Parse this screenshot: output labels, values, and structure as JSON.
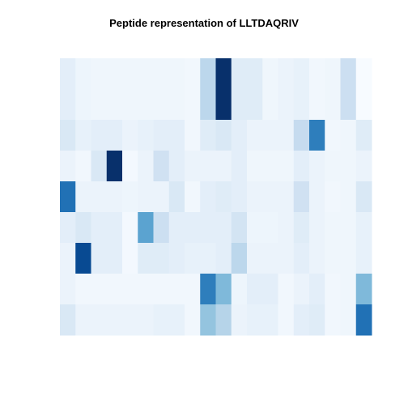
{
  "chart_data": {
    "type": "heatmap",
    "title": "Peptide representation of LLTDAQRIV",
    "xlabel": "",
    "ylabel": "",
    "n_rows": 9,
    "n_cols": 20,
    "color_scale": {
      "low": "#f7fbff",
      "high": "#08306b"
    },
    "values": [
      [
        0.1,
        0.05,
        0.04,
        0.04,
        0.04,
        0.04,
        0.04,
        0.04,
        0.03,
        0.28,
        1.0,
        0.12,
        0.12,
        0.04,
        0.06,
        0.08,
        0.03,
        0.04,
        0.22,
        0.0
      ],
      [
        0.1,
        0.05,
        0.04,
        0.04,
        0.04,
        0.04,
        0.04,
        0.04,
        0.03,
        0.28,
        1.0,
        0.12,
        0.12,
        0.04,
        0.06,
        0.08,
        0.03,
        0.04,
        0.22,
        0.0
      ],
      [
        0.15,
        0.08,
        0.1,
        0.1,
        0.06,
        0.08,
        0.1,
        0.1,
        0.03,
        0.12,
        0.15,
        0.1,
        0.06,
        0.06,
        0.06,
        0.25,
        0.7,
        0.03,
        0.04,
        0.12
      ],
      [
        0.06,
        0.03,
        0.15,
        1.0,
        0.02,
        0.06,
        0.2,
        0.1,
        0.06,
        0.06,
        0.06,
        0.1,
        0.04,
        0.04,
        0.04,
        0.1,
        0.06,
        0.04,
        0.04,
        0.06
      ],
      [
        0.75,
        0.06,
        0.06,
        0.06,
        0.05,
        0.06,
        0.06,
        0.15,
        0.03,
        0.1,
        0.12,
        0.1,
        0.06,
        0.06,
        0.06,
        0.2,
        0.06,
        0.03,
        0.04,
        0.15
      ],
      [
        0.1,
        0.15,
        0.1,
        0.1,
        0.02,
        0.55,
        0.22,
        0.1,
        0.1,
        0.1,
        0.1,
        0.18,
        0.05,
        0.05,
        0.06,
        0.12,
        0.06,
        0.04,
        0.04,
        0.08
      ],
      [
        0.06,
        0.9,
        0.1,
        0.1,
        0.02,
        0.12,
        0.12,
        0.1,
        0.08,
        0.08,
        0.1,
        0.28,
        0.06,
        0.06,
        0.06,
        0.1,
        0.06,
        0.04,
        0.04,
        0.08
      ],
      [
        0.06,
        0.03,
        0.03,
        0.03,
        0.03,
        0.03,
        0.03,
        0.03,
        0.03,
        0.7,
        0.45,
        0.05,
        0.1,
        0.1,
        0.03,
        0.06,
        0.1,
        0.03,
        0.04,
        0.45
      ],
      [
        0.15,
        0.06,
        0.06,
        0.06,
        0.06,
        0.06,
        0.08,
        0.08,
        0.03,
        0.4,
        0.3,
        0.06,
        0.08,
        0.08,
        0.03,
        0.1,
        0.12,
        0.03,
        0.04,
        0.75
      ]
    ]
  }
}
